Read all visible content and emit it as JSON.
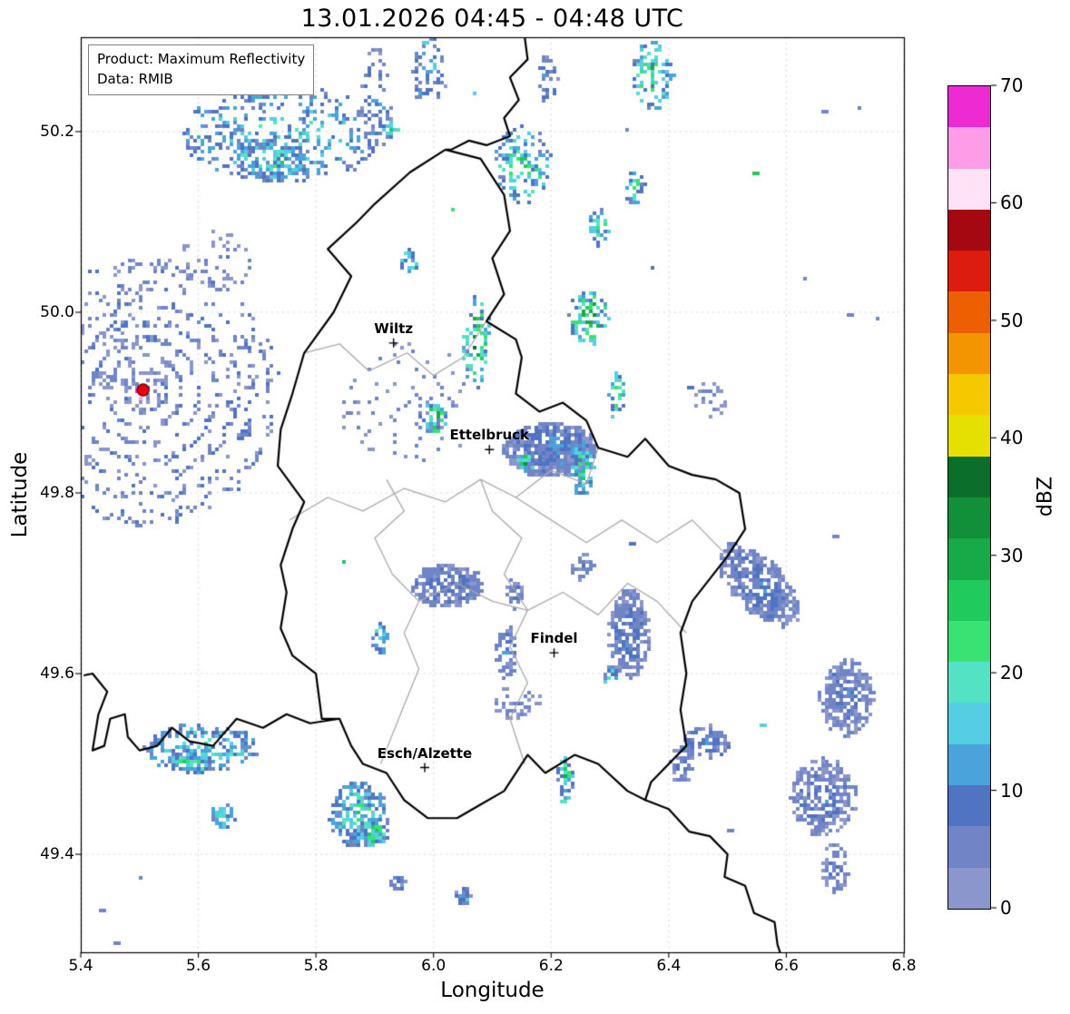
{
  "title": "13.01.2026 04:45 - 04:48 UTC",
  "info_box": {
    "line1": "Product: Maximum Reflectivity",
    "line2": "Data: RMIB"
  },
  "axes": {
    "xlabel": "Longitude",
    "ylabel": "Latitude",
    "xticks": [
      5.4,
      5.6,
      5.8,
      6.0,
      6.2,
      6.4,
      6.6,
      6.8
    ],
    "yticks": [
      49.4,
      49.6,
      49.8,
      50.0,
      50.2
    ],
    "xlim": [
      5.4,
      6.8
    ],
    "ylim": [
      49.2915,
      50.3045
    ]
  },
  "colorbar": {
    "label": "dBZ",
    "ticks": [
      0,
      10,
      20,
      30,
      40,
      50,
      60,
      70
    ],
    "vmin": 0,
    "vmax": 70,
    "band_width_dbz": 3.5,
    "colors": [
      "#8a96cc",
      "#7185c6",
      "#5073c2",
      "#4aa3da",
      "#55cde2",
      "#53e2c4",
      "#39e273",
      "#20ca5c",
      "#18aa49",
      "#119039",
      "#0b6e2b",
      "#e6e000",
      "#f5c800",
      "#f29500",
      "#ed5f00",
      "#dd1c10",
      "#a50810",
      "#ffe2f5",
      "#ff9ce8",
      "#ee2ad2"
    ]
  },
  "cities": [
    {
      "name": "Wiltz",
      "lon": 5.932,
      "lat": 49.966
    },
    {
      "name": "Ettelbruck",
      "lon": 6.095,
      "lat": 49.848
    },
    {
      "name": "Findel",
      "lon": 6.205,
      "lat": 49.623
    },
    {
      "name": "Esch/Alzette",
      "lon": 5.985,
      "lat": 49.496
    }
  ],
  "radar_site": {
    "lon": 5.506,
    "lat": 49.914
  },
  "styles": {
    "country_border_color": "#000000",
    "district_border_color": "#aaaaaa",
    "grid_color": "#9a9a9a",
    "radar_dot_color": "#e60012",
    "radar_dot_edge": "#7a0000"
  },
  "chart_data": {
    "type": "heatmap",
    "title": "13.01.2026 04:45 - 04:48 UTC",
    "product": "Maximum Reflectivity",
    "source": "RMIB",
    "xlabel": "Longitude",
    "ylabel": "Latitude",
    "xlim": [
      5.4,
      6.8
    ],
    "ylim": [
      49.2915,
      50.3045
    ],
    "grid": true,
    "colorbar_label": "dBZ",
    "colorbar_range": [
      0,
      70
    ],
    "cell_size_deg": [
      0.006,
      0.004
    ],
    "echo_clusters": [
      {
        "lon": 5.74,
        "lat": 50.2,
        "rx": 0.17,
        "ry": 0.055,
        "n": 380,
        "dmax": 24
      },
      {
        "lon": 5.72,
        "lat": 50.17,
        "rx": 0.07,
        "ry": 0.022,
        "n": 150,
        "dmax": 31
      },
      {
        "lon": 5.9,
        "lat": 50.235,
        "rx": 0.028,
        "ry": 0.06,
        "n": 70,
        "dmax": 15
      },
      {
        "lon": 5.925,
        "lat": 50.205,
        "rx": 0.012,
        "ry": 0.009,
        "n": 18,
        "dmax": 43
      },
      {
        "lon": 5.99,
        "lat": 50.27,
        "rx": 0.03,
        "ry": 0.04,
        "n": 55,
        "dmax": 19
      },
      {
        "lon": 6.15,
        "lat": 50.165,
        "rx": 0.05,
        "ry": 0.045,
        "n": 120,
        "dmax": 33
      },
      {
        "lon": 6.19,
        "lat": 50.26,
        "rx": 0.02,
        "ry": 0.025,
        "n": 28,
        "dmax": 17
      },
      {
        "lon": 6.37,
        "lat": 50.265,
        "rx": 0.035,
        "ry": 0.038,
        "n": 90,
        "dmax": 37
      },
      {
        "lon": 6.34,
        "lat": 50.14,
        "rx": 0.015,
        "ry": 0.022,
        "n": 26,
        "dmax": 30
      },
      {
        "lon": 6.28,
        "lat": 50.095,
        "rx": 0.02,
        "ry": 0.02,
        "n": 35,
        "dmax": 30
      },
      {
        "lon": 6.26,
        "lat": 49.995,
        "rx": 0.035,
        "ry": 0.032,
        "n": 95,
        "dmax": 43
      },
      {
        "lon": 6.31,
        "lat": 49.91,
        "rx": 0.014,
        "ry": 0.026,
        "n": 30,
        "dmax": 33
      },
      {
        "lon": 6.07,
        "lat": 49.97,
        "rx": 0.024,
        "ry": 0.05,
        "n": 70,
        "dmax": 40
      },
      {
        "lon": 5.955,
        "lat": 50.06,
        "rx": 0.015,
        "ry": 0.012,
        "n": 20,
        "dmax": 33
      },
      {
        "lon": 6.0,
        "lat": 49.885,
        "rx": 0.02,
        "ry": 0.02,
        "n": 48,
        "dmax": 43
      },
      {
        "lon": 5.95,
        "lat": 49.9,
        "rx": 0.12,
        "ry": 0.07,
        "n": 80,
        "dmax": 10
      },
      {
        "lon": 6.195,
        "lat": 49.85,
        "rx": 0.078,
        "ry": 0.03,
        "n": 600,
        "dmax": 15
      },
      {
        "lon": 6.25,
        "lat": 49.83,
        "rx": 0.02,
        "ry": 0.032,
        "n": 90,
        "dmax": 31
      },
      {
        "lon": 6.155,
        "lat": 49.835,
        "rx": 0.012,
        "ry": 0.01,
        "n": 16,
        "dmax": 42
      },
      {
        "lon": 6.02,
        "lat": 49.7,
        "rx": 0.06,
        "ry": 0.024,
        "n": 260,
        "dmax": 13
      },
      {
        "lon": 6.135,
        "lat": 49.69,
        "rx": 0.016,
        "ry": 0.016,
        "n": 40,
        "dmax": 12
      },
      {
        "lon": 6.33,
        "lat": 49.645,
        "rx": 0.035,
        "ry": 0.05,
        "n": 300,
        "dmax": 13
      },
      {
        "lon": 6.3,
        "lat": 49.6,
        "rx": 0.012,
        "ry": 0.01,
        "n": 18,
        "dmax": 32
      },
      {
        "lon": 6.12,
        "lat": 49.625,
        "rx": 0.02,
        "ry": 0.03,
        "n": 55,
        "dmax": 13
      },
      {
        "lon": 6.55,
        "lat": 49.7,
        "rx": 0.075,
        "ry": 0.033,
        "n": 430,
        "dmax": 13,
        "rot": -28
      },
      {
        "lon": 6.7,
        "lat": 49.575,
        "rx": 0.045,
        "ry": 0.042,
        "n": 280,
        "dmax": 12
      },
      {
        "lon": 6.66,
        "lat": 49.465,
        "rx": 0.055,
        "ry": 0.042,
        "n": 300,
        "dmax": 12
      },
      {
        "lon": 6.68,
        "lat": 49.385,
        "rx": 0.022,
        "ry": 0.03,
        "n": 70,
        "dmax": 10
      },
      {
        "lon": 6.46,
        "lat": 49.525,
        "rx": 0.04,
        "ry": 0.018,
        "n": 90,
        "dmax": 16
      },
      {
        "lon": 5.6,
        "lat": 49.52,
        "rx": 0.1,
        "ry": 0.026,
        "n": 190,
        "dmax": 28
      },
      {
        "lon": 5.585,
        "lat": 49.505,
        "rx": 0.04,
        "ry": 0.013,
        "n": 80,
        "dmax": 33
      },
      {
        "lon": 5.64,
        "lat": 49.445,
        "rx": 0.02,
        "ry": 0.013,
        "n": 45,
        "dmax": 28
      },
      {
        "lon": 5.87,
        "lat": 49.445,
        "rx": 0.05,
        "ry": 0.036,
        "n": 190,
        "dmax": 28
      },
      {
        "lon": 5.895,
        "lat": 49.425,
        "rx": 0.025,
        "ry": 0.016,
        "n": 70,
        "dmax": 36
      },
      {
        "lon": 5.935,
        "lat": 49.37,
        "rx": 0.013,
        "ry": 0.009,
        "n": 14,
        "dmax": 16
      },
      {
        "lon": 6.05,
        "lat": 49.355,
        "rx": 0.016,
        "ry": 0.011,
        "n": 22,
        "dmax": 18
      },
      {
        "lon": 6.22,
        "lat": 49.485,
        "rx": 0.012,
        "ry": 0.026,
        "n": 45,
        "dmax": 38
      },
      {
        "lon": 6.42,
        "lat": 49.5,
        "rx": 0.02,
        "ry": 0.02,
        "n": 50,
        "dmax": 12
      },
      {
        "lon": 5.905,
        "lat": 49.64,
        "rx": 0.013,
        "ry": 0.02,
        "n": 28,
        "dmax": 31
      },
      {
        "lon": 6.14,
        "lat": 49.57,
        "rx": 0.04,
        "ry": 0.02,
        "n": 40,
        "dmax": 9
      },
      {
        "lon": 6.25,
        "lat": 49.72,
        "rx": 0.02,
        "ry": 0.015,
        "n": 35,
        "dmax": 10
      },
      {
        "lon": 5.47,
        "lat": 49.95,
        "rx": 0.05,
        "ry": 0.05,
        "n": 45,
        "dmax": 8
      },
      {
        "lon": 6.47,
        "lat": 49.905,
        "rx": 0.03,
        "ry": 0.02,
        "n": 25,
        "dmax": 8
      },
      {
        "lon": 5.63,
        "lat": 50.06,
        "rx": 0.07,
        "ry": 0.03,
        "n": 45,
        "dmax": 9
      },
      {
        "lon": 5.506,
        "lat": 49.914,
        "rx": 0.045,
        "ry": 0.028,
        "n": 40,
        "dmax": 7
      }
    ],
    "echo_singles": [
      {
        "lon": 6.66,
        "lat": 50.225,
        "dbz": 6,
        "w": 2
      },
      {
        "lon": 6.72,
        "lat": 50.23,
        "dbz": 6,
        "w": 1
      },
      {
        "lon": 6.54,
        "lat": 50.155,
        "dbz": 26,
        "w": 2
      },
      {
        "lon": 6.63,
        "lat": 50.04,
        "dbz": 6,
        "w": 1
      },
      {
        "lon": 6.7,
        "lat": 50.0,
        "dbz": 6,
        "w": 2
      },
      {
        "lon": 6.755,
        "lat": 49.995,
        "dbz": 6,
        "w": 1
      },
      {
        "lon": 6.43,
        "lat": 49.92,
        "dbz": 7,
        "w": 2
      },
      {
        "lon": 6.68,
        "lat": 49.755,
        "dbz": 6,
        "w": 2
      },
      {
        "lon": 6.37,
        "lat": 50.05,
        "dbz": 7,
        "w": 1
      },
      {
        "lon": 6.327,
        "lat": 50.205,
        "dbz": 6,
        "w": 1
      },
      {
        "lon": 5.98,
        "lat": 50.3,
        "dbz": 15,
        "w": 2
      },
      {
        "lon": 6.065,
        "lat": 50.245,
        "dbz": 16,
        "w": 1
      },
      {
        "lon": 6.03,
        "lat": 50.115,
        "dbz": 24,
        "w": 1
      },
      {
        "lon": 5.845,
        "lat": 49.725,
        "dbz": 26,
        "w": 1
      },
      {
        "lon": 6.556,
        "lat": 49.543,
        "dbz": 15,
        "w": 2
      },
      {
        "lon": 6.428,
        "lat": 49.52,
        "dbz": 24,
        "w": 1
      },
      {
        "lon": 6.5,
        "lat": 49.43,
        "dbz": 6,
        "w": 2
      },
      {
        "lon": 6.33,
        "lat": 49.745,
        "dbz": 7,
        "w": 2
      },
      {
        "lon": 5.43,
        "lat": 49.34,
        "dbz": 6,
        "w": 2
      },
      {
        "lon": 5.455,
        "lat": 49.305,
        "dbz": 6,
        "w": 2
      },
      {
        "lon": 5.5,
        "lat": 49.375,
        "dbz": 6,
        "w": 1
      },
      {
        "lon": 5.492,
        "lat": 49.914,
        "dbz": 68,
        "w": 1
      },
      {
        "lon": 5.497,
        "lat": 49.905,
        "dbz": 63,
        "w": 1
      }
    ],
    "clutter_rings": {
      "center": {
        "lon": 5.506,
        "lat": 49.914
      },
      "radii_deg_lat": [
        0.022,
        0.04,
        0.058,
        0.078,
        0.098,
        0.118,
        0.14
      ],
      "dbz_max": 8
    },
    "borders": {
      "country_luxembourg": [
        [
          6.02,
          50.18
        ],
        [
          6.08,
          50.17
        ],
        [
          6.12,
          50.13
        ],
        [
          6.13,
          50.09
        ],
        [
          6.1,
          50.06
        ],
        [
          6.12,
          50.02
        ],
        [
          6.09,
          49.99
        ],
        [
          6.14,
          49.97
        ],
        [
          6.15,
          49.95
        ],
        [
          6.14,
          49.91
        ],
        [
          6.18,
          49.89
        ],
        [
          6.22,
          49.9
        ],
        [
          6.26,
          49.88
        ],
        [
          6.28,
          49.85
        ],
        [
          6.33,
          49.84
        ],
        [
          6.36,
          49.86
        ],
        [
          6.4,
          49.83
        ],
        [
          6.44,
          49.82
        ],
        [
          6.48,
          49.815
        ],
        [
          6.52,
          49.8
        ],
        [
          6.53,
          49.76
        ],
        [
          6.5,
          49.73
        ],
        [
          6.44,
          49.68
        ],
        [
          6.42,
          49.645
        ],
        [
          6.43,
          49.6
        ],
        [
          6.42,
          49.56
        ],
        [
          6.43,
          49.52
        ],
        [
          6.37,
          49.48
        ],
        [
          6.36,
          49.46
        ],
        [
          6.33,
          49.47
        ],
        [
          6.28,
          49.5
        ],
        [
          6.24,
          49.51
        ],
        [
          6.19,
          49.49
        ],
        [
          6.16,
          49.51
        ],
        [
          6.12,
          49.47
        ],
        [
          6.08,
          49.455
        ],
        [
          6.04,
          49.44
        ],
        [
          5.99,
          49.44
        ],
        [
          5.95,
          49.46
        ],
        [
          5.92,
          49.49
        ],
        [
          5.88,
          49.5
        ],
        [
          5.86,
          49.52
        ],
        [
          5.84,
          49.55
        ],
        [
          5.81,
          49.55
        ],
        [
          5.8,
          49.6
        ],
        [
          5.76,
          49.62
        ],
        [
          5.74,
          49.65
        ],
        [
          5.75,
          49.69
        ],
        [
          5.74,
          49.72
        ],
        [
          5.76,
          49.76
        ],
        [
          5.78,
          49.79
        ],
        [
          5.735,
          49.83
        ],
        [
          5.74,
          49.87
        ],
        [
          5.76,
          49.91
        ],
        [
          5.78,
          49.955
        ],
        [
          5.83,
          50.0
        ],
        [
          5.86,
          50.04
        ],
        [
          5.82,
          50.07
        ],
        [
          5.87,
          50.1
        ],
        [
          5.9,
          50.12
        ],
        [
          5.96,
          50.155
        ],
        [
          6.02,
          50.18
        ]
      ],
      "belgium_germany": [
        [
          6.155,
          50.305
        ],
        [
          6.16,
          50.28
        ],
        [
          6.13,
          50.26
        ],
        [
          6.145,
          50.235
        ],
        [
          6.12,
          50.215
        ],
        [
          6.13,
          50.195
        ],
        [
          6.09,
          50.185
        ],
        [
          6.06,
          50.19
        ],
        [
          6.03,
          50.18
        ],
        [
          6.02,
          50.18
        ]
      ],
      "france_germany": [
        [
          6.36,
          49.46
        ],
        [
          6.4,
          49.45
        ],
        [
          6.435,
          49.425
        ],
        [
          6.47,
          49.42
        ],
        [
          6.5,
          49.4
        ],
        [
          6.495,
          49.375
        ],
        [
          6.53,
          49.365
        ],
        [
          6.545,
          49.335
        ],
        [
          6.58,
          49.325
        ],
        [
          6.585,
          49.3
        ],
        [
          6.59,
          49.29
        ]
      ],
      "france_belgium": [
        [
          5.84,
          49.55
        ],
        [
          5.79,
          49.545
        ],
        [
          5.75,
          49.555
        ],
        [
          5.71,
          49.54
        ],
        [
          5.665,
          49.55
        ],
        [
          5.625,
          49.52
        ],
        [
          5.585,
          49.525
        ],
        [
          5.555,
          49.54
        ],
        [
          5.53,
          49.52
        ],
        [
          5.5,
          49.515
        ],
        [
          5.48,
          49.53
        ],
        [
          5.475,
          49.555
        ],
        [
          5.45,
          49.55
        ],
        [
          5.44,
          49.52
        ],
        [
          5.42,
          49.515
        ],
        [
          5.43,
          49.555
        ],
        [
          5.445,
          49.58
        ],
        [
          5.42,
          49.6
        ],
        [
          5.405,
          49.598
        ]
      ]
    },
    "district_borders": [
      [
        [
          5.78,
          49.955
        ],
        [
          5.84,
          49.965
        ],
        [
          5.89,
          49.935
        ],
        [
          5.955,
          49.955
        ],
        [
          6.0,
          49.93
        ],
        [
          6.05,
          49.95
        ],
        [
          6.09,
          49.99
        ]
      ],
      [
        [
          5.755,
          49.77
        ],
        [
          5.82,
          49.795
        ],
        [
          5.88,
          49.78
        ],
        [
          5.95,
          49.805
        ],
        [
          6.02,
          49.79
        ],
        [
          6.08,
          49.815
        ],
        [
          6.14,
          49.795
        ],
        [
          6.2,
          49.825
        ],
        [
          6.26,
          49.81
        ],
        [
          6.28,
          49.85
        ]
      ],
      [
        [
          5.92,
          49.815
        ],
        [
          5.95,
          49.78
        ],
        [
          5.9,
          49.75
        ],
        [
          5.93,
          49.71
        ],
        [
          5.975,
          49.68
        ],
        [
          5.95,
          49.645
        ],
        [
          5.975,
          49.605
        ],
        [
          5.95,
          49.565
        ],
        [
          5.91,
          49.5
        ]
      ],
      [
        [
          6.08,
          49.815
        ],
        [
          6.1,
          49.78
        ],
        [
          6.15,
          49.75
        ],
        [
          6.12,
          49.71
        ],
        [
          6.16,
          49.67
        ],
        [
          6.13,
          49.63
        ],
        [
          6.16,
          49.59
        ],
        [
          6.13,
          49.55
        ],
        [
          6.155,
          49.5
        ]
      ],
      [
        [
          5.975,
          49.68
        ],
        [
          6.04,
          49.7
        ],
        [
          6.1,
          49.68
        ],
        [
          6.16,
          49.67
        ],
        [
          6.22,
          49.69
        ],
        [
          6.28,
          49.665
        ],
        [
          6.33,
          49.7
        ],
        [
          6.38,
          49.68
        ],
        [
          6.43,
          49.645
        ]
      ],
      [
        [
          6.14,
          49.795
        ],
        [
          6.2,
          49.77
        ],
        [
          6.26,
          49.745
        ],
        [
          6.32,
          49.77
        ],
        [
          6.38,
          49.745
        ],
        [
          6.44,
          49.77
        ],
        [
          6.5,
          49.73
        ]
      ]
    ]
  }
}
